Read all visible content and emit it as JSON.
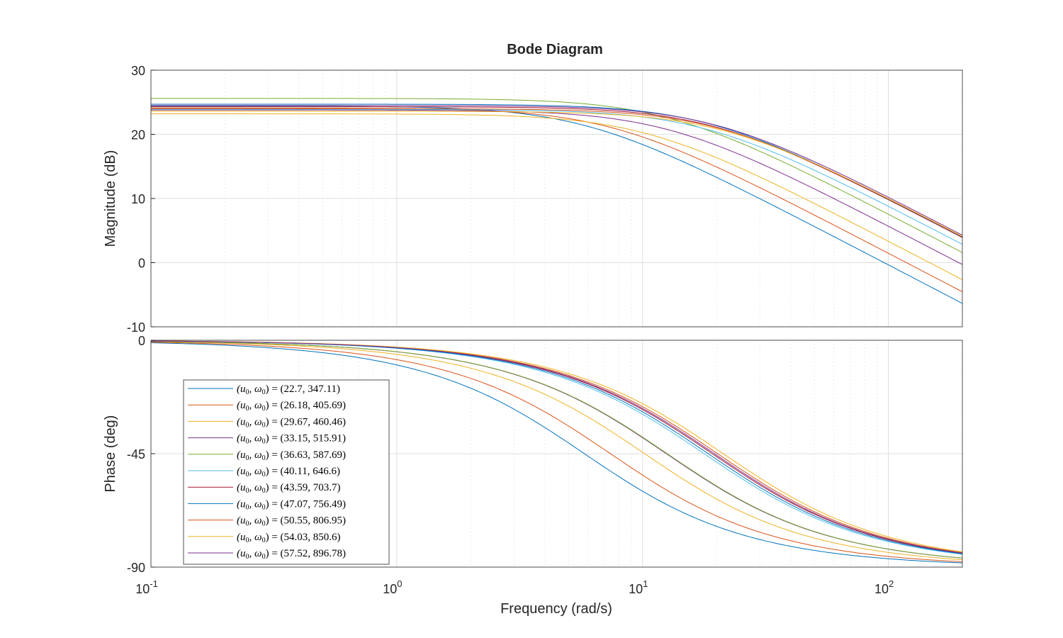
{
  "chart_data": {
    "type": "line",
    "title": "Bode Diagram",
    "xlabel": "Frequency  (rad/s)",
    "x_scale": "log",
    "xlim": [
      0.1,
      200
    ],
    "x_ticks": [
      {
        "value": 0.1,
        "base": "10",
        "exp": "-1"
      },
      {
        "value": 1,
        "base": "10",
        "exp": "0"
      },
      {
        "value": 10,
        "base": "10",
        "exp": "1"
      },
      {
        "value": 100,
        "base": "10",
        "exp": "2"
      }
    ],
    "grid": true,
    "legend_location": "lower-left (phase panel)",
    "panels": [
      {
        "name": "magnitude",
        "ylabel": "Magnitude (dB)",
        "ylim": [
          -10,
          30
        ],
        "y_ticks": [
          "30",
          "20",
          "10",
          "0",
          "-10"
        ],
        "y_tick_values": [
          30,
          20,
          10,
          0,
          -10
        ]
      },
      {
        "name": "phase",
        "ylabel": "Phase (deg)",
        "ylim": [
          -90,
          0
        ],
        "y_ticks": [
          "0",
          "-45",
          "-90"
        ],
        "y_tick_values": [
          0,
          -45,
          -90
        ]
      }
    ],
    "series": [
      {
        "name": "(u0, ω0) = (22.7, 347.11)",
        "u0": "22.7",
        "w0": "347.11",
        "color": "#0072BD",
        "dc_gain_db": 24.4,
        "corner_rad_s": 5.8
      },
      {
        "name": "(u0, ω0) = (26.18, 405.69)",
        "u0": "26.18",
        "w0": "405.69",
        "color": "#D95319",
        "dc_gain_db": 24.1,
        "corner_rad_s": 7.4
      },
      {
        "name": "(u0, ω0) = (29.67, 460.46)",
        "u0": "29.67",
        "w0": "460.46",
        "color": "#EDB120",
        "dc_gain_db": 23.2,
        "corner_rad_s": 10.2
      },
      {
        "name": "(u0, ω0) = (33.15, 515.91)",
        "u0": "33.15",
        "w0": "515.91",
        "color": "#7E2F8E",
        "dc_gain_db": 23.8,
        "corner_rad_s": 12.5
      },
      {
        "name": "(u0, ω0) = (36.63, 587.69)",
        "u0": "36.63",
        "w0": "587.69",
        "color": "#77AC30",
        "dc_gain_db": 25.6,
        "corner_rad_s": 12.6
      },
      {
        "name": "(u0, ω0) = (40.11, 646.6)",
        "u0": "40.11",
        "w0": "646.6",
        "color": "#4DBEEE",
        "dc_gain_db": 23.9,
        "corner_rad_s": 17.8
      },
      {
        "name": "(u0, ω0) = (43.59, 703.7)",
        "u0": "43.59",
        "w0": "703.7",
        "color": "#A2142F",
        "dc_gain_db": 24.3,
        "corner_rad_s": 19.2
      },
      {
        "name": "(u0, ω0) = (47.07, 756.49)",
        "u0": "47.07",
        "w0": "756.49",
        "color": "#0072BD",
        "dc_gain_db": 24.7,
        "corner_rad_s": 18.5
      },
      {
        "name": "(u0, ω0) = (50.55, 806.95)",
        "u0": "50.55",
        "w0": "806.95",
        "color": "#D95319",
        "dc_gain_db": 24.0,
        "corner_rad_s": 20.2
      },
      {
        "name": "(u0, ω0) = (54.03, 850.6)",
        "u0": "54.03",
        "w0": "850.6",
        "color": "#EDB120",
        "dc_gain_db": 23.6,
        "corner_rad_s": 21.3
      },
      {
        "name": "(u0, ω0) = (57.52, 896.78)",
        "u0": "57.52",
        "w0": "896.78",
        "color": "#7E2F8E",
        "dc_gain_db": 24.5,
        "corner_rad_s": 19.6
      }
    ]
  }
}
